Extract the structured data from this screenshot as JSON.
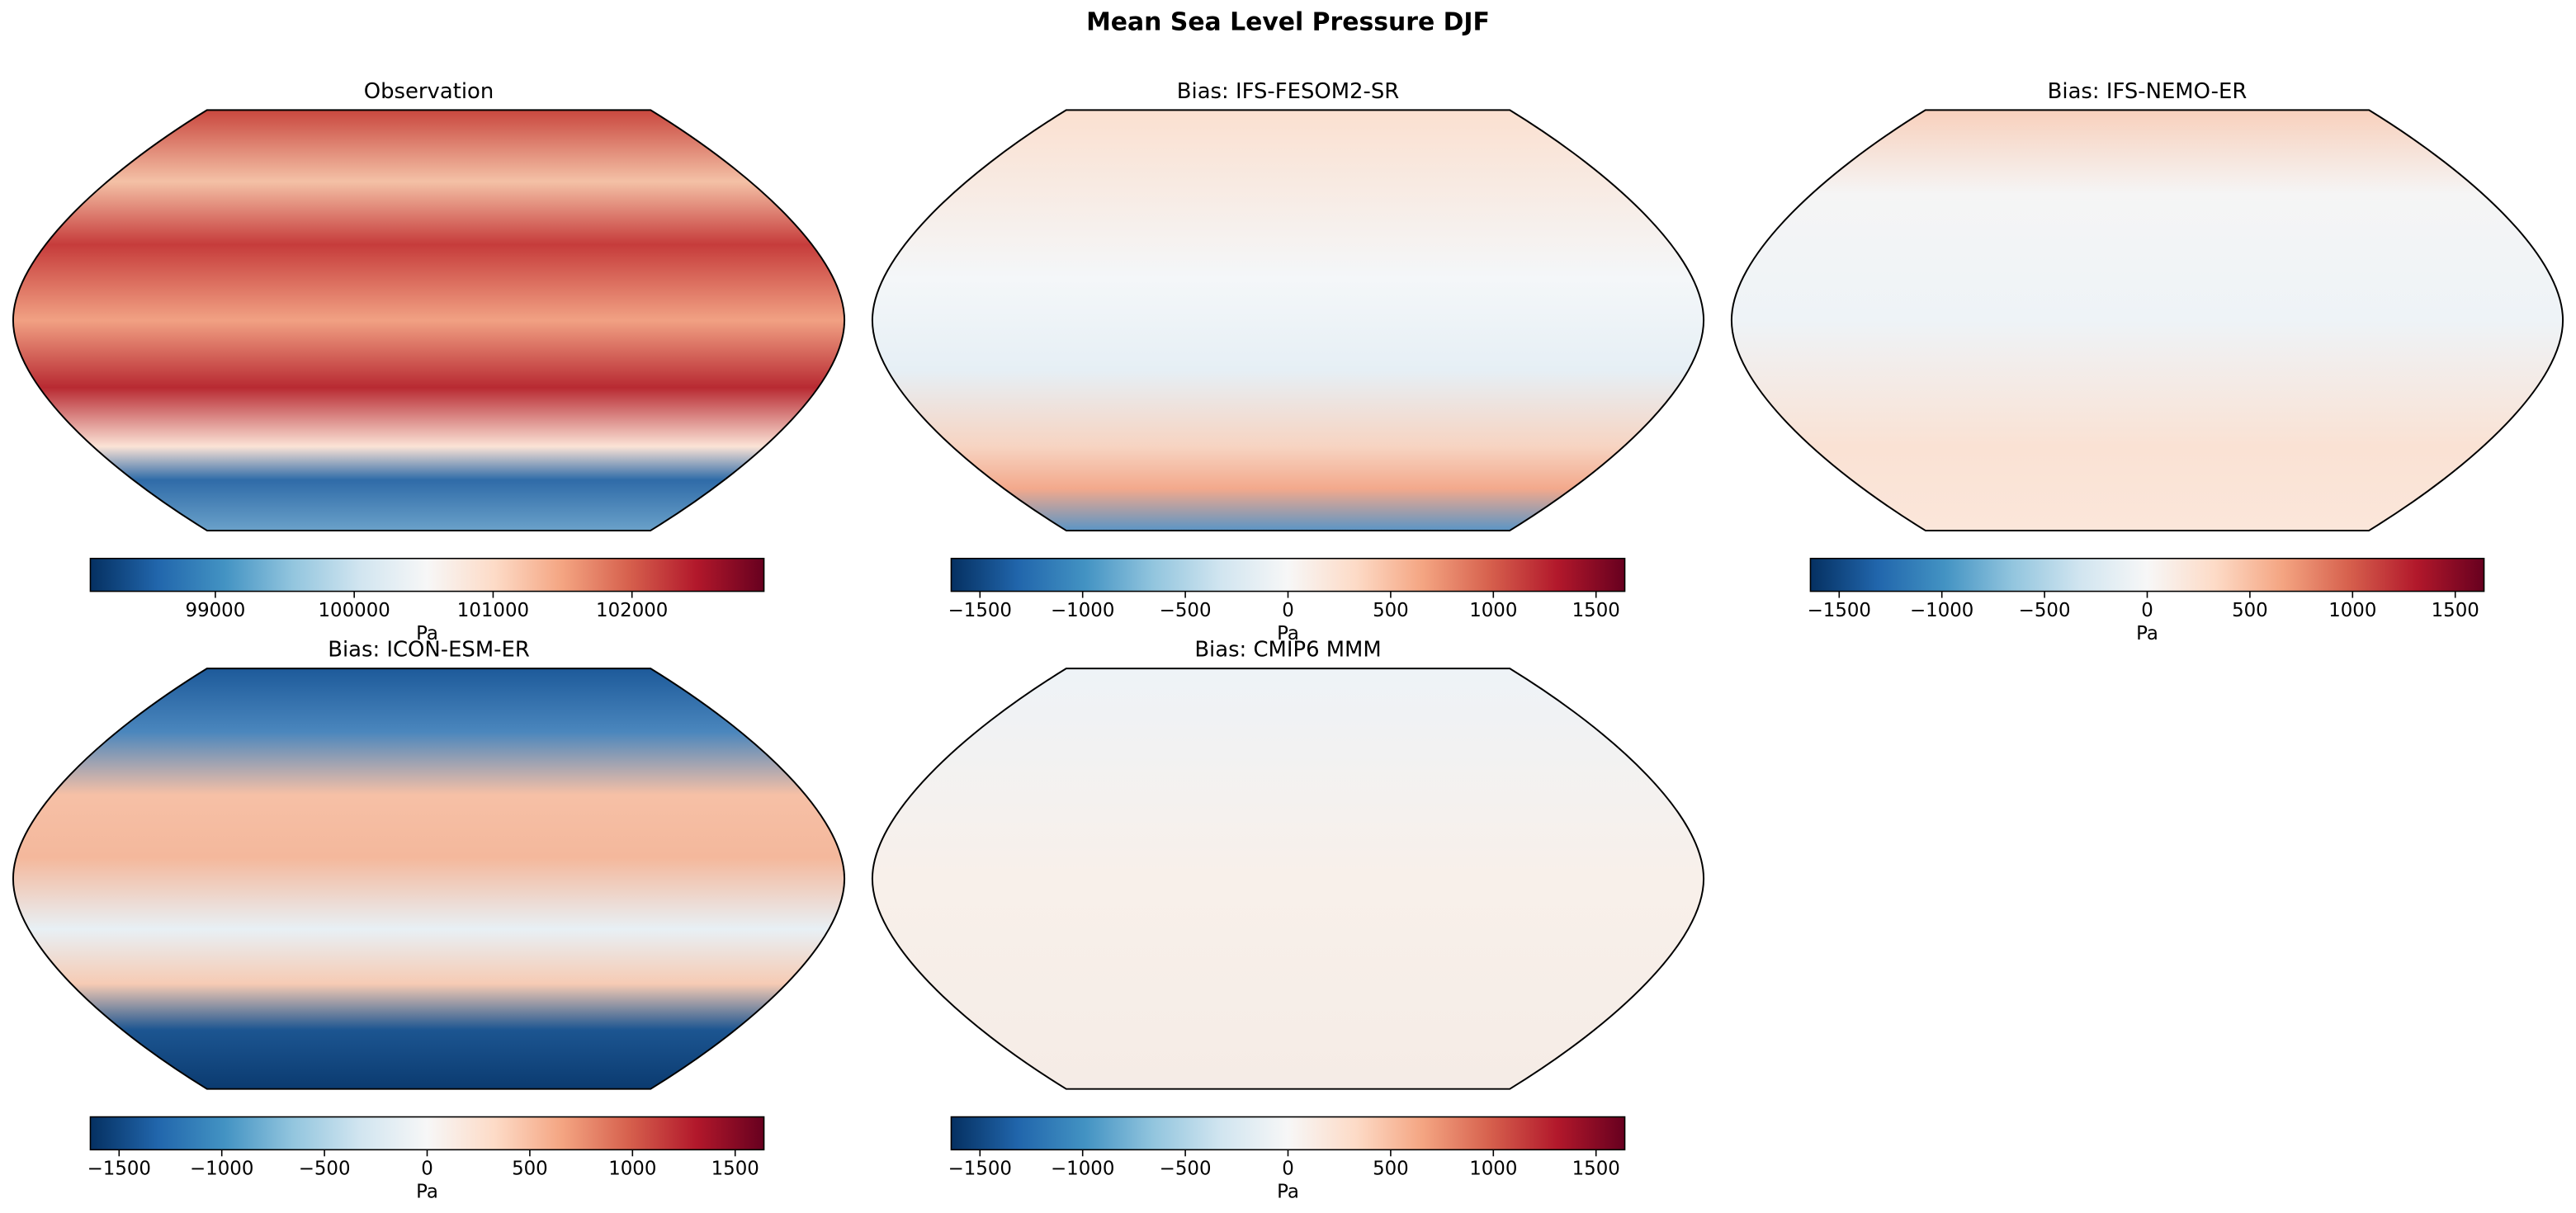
{
  "title": "Mean Sea Level Pressure DJF",
  "panels": [
    {
      "title": "Observation",
      "colorbar": {
        "label": "Pa",
        "lim": [
          98100,
          102950
        ],
        "ticks": [
          99000,
          100000,
          101000,
          102000
        ]
      }
    },
    {
      "title": "Bias: IFS-FESOM2-SR",
      "colorbar": {
        "label": "Pa",
        "lim": [
          -1640,
          1640
        ],
        "ticks": [
          {
            "value": -1500,
            "label": "−1500"
          },
          {
            "value": -1000,
            "label": "−1000"
          },
          {
            "value": -500,
            "label": "−500"
          },
          0,
          500,
          1000,
          1500
        ]
      }
    },
    {
      "title": "Bias: IFS-NEMO-ER",
      "colorbar": {
        "label": "Pa",
        "lim": [
          -1640,
          1640
        ],
        "ticks": [
          {
            "value": -1500,
            "label": "−1500"
          },
          {
            "value": -1000,
            "label": "−1000"
          },
          {
            "value": -500,
            "label": "−500"
          },
          0,
          500,
          1000,
          1500
        ]
      }
    },
    {
      "title": "Bias: ICON-ESM-ER",
      "colorbar": {
        "label": "Pa",
        "lim": [
          -1640,
          1640
        ],
        "ticks": [
          {
            "value": -1500,
            "label": "−1500"
          },
          {
            "value": -1000,
            "label": "−1000"
          },
          {
            "value": -500,
            "label": "−500"
          },
          0,
          500,
          1000,
          1500
        ]
      }
    },
    {
      "title": "Bias: CMIP6 MMM",
      "colorbar": {
        "label": "Pa",
        "lim": [
          -1640,
          1640
        ],
        "ticks": [
          {
            "value": -1500,
            "label": "−1500"
          },
          {
            "value": -1000,
            "label": "−1000"
          },
          {
            "value": -500,
            "label": "−500"
          },
          0,
          500,
          1000,
          1500
        ]
      }
    }
  ]
}
